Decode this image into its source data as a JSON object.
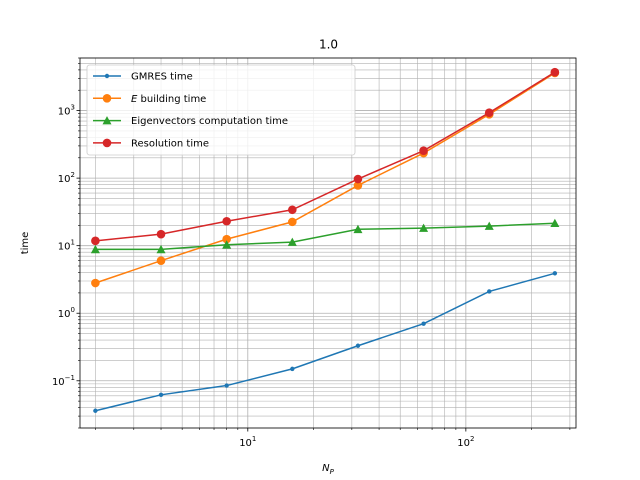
{
  "chart_data": {
    "type": "line",
    "title": "1.0",
    "xlabel": "N_P",
    "ylabel": "time",
    "xscale": "log",
    "yscale": "log",
    "xlim": [
      1.7,
      320
    ],
    "ylim": [
      0.02,
      6000
    ],
    "grid": "major and minor",
    "legend_position": "top-left",
    "x": [
      2,
      4,
      8,
      16,
      32,
      64,
      128,
      256
    ],
    "x_ticks": [
      {
        "value": 10,
        "base": "10",
        "exp": "1"
      },
      {
        "value": 100,
        "base": "10",
        "exp": "2"
      }
    ],
    "y_ticks": [
      {
        "value": 0.1,
        "base": "10",
        "exp": "−1"
      },
      {
        "value": 1,
        "base": "10",
        "exp": "0"
      },
      {
        "value": 10,
        "base": "10",
        "exp": "1"
      },
      {
        "value": 100,
        "base": "10",
        "exp": "2"
      },
      {
        "value": 1000,
        "base": "10",
        "exp": "3"
      }
    ],
    "series": [
      {
        "name": "GMRES time",
        "color": "#1f77b4",
        "marker": "small-circle",
        "values": [
          0.036,
          0.062,
          0.085,
          0.15,
          0.33,
          0.7,
          2.1,
          3.9
        ]
      },
      {
        "name": "E building time",
        "color": "#ff7f0e",
        "marker": "circle",
        "values": [
          2.8,
          6.0,
          12.5,
          22.5,
          78,
          235,
          880,
          3600
        ]
      },
      {
        "name": "Eigenvectors computation time",
        "color": "#2ca02c",
        "marker": "triangle",
        "values": [
          8.8,
          8.8,
          10.3,
          11.3,
          17.5,
          18.2,
          19.5,
          21.5
        ]
      },
      {
        "name": "Resolution time",
        "color": "#d62728",
        "marker": "circle",
        "values": [
          11.8,
          14.8,
          23.0,
          34.0,
          97,
          255,
          930,
          3700
        ]
      }
    ]
  }
}
